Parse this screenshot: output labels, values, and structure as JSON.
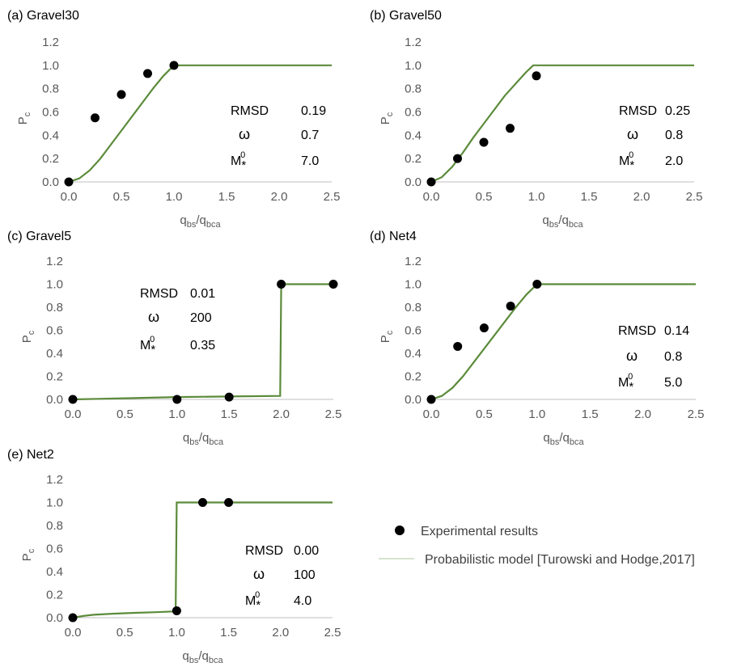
{
  "chart_data": [
    {
      "type": "line",
      "title": "(a) Gravel30",
      "xlabel": {
        "main": "q",
        "sub1": "bs",
        "mid": "/q",
        "sub2": "bca"
      },
      "ylabel": {
        "main": "P",
        "sub": "c"
      },
      "xlim": [
        0,
        2.5
      ],
      "ylim": [
        0,
        1.2
      ],
      "xticks": [
        "0.0",
        "0.5",
        "1.0",
        "1.5",
        "2.0",
        "2.5"
      ],
      "yticks": [
        "0.0",
        "0.2",
        "0.4",
        "0.6",
        "0.8",
        "1.0",
        "1.2"
      ],
      "grid": false,
      "series": [
        {
          "kind": "scatter",
          "x": [
            0.0,
            0.25,
            0.5,
            0.75,
            1.0
          ],
          "y": [
            0.0,
            0.55,
            0.75,
            0.93,
            1.0
          ]
        },
        {
          "kind": "line",
          "x": [
            0,
            0.1,
            0.2,
            0.3,
            0.4,
            0.5,
            0.6,
            0.7,
            0.8,
            0.9,
            1.0,
            2.5
          ],
          "y": [
            0,
            0.03,
            0.1,
            0.2,
            0.32,
            0.44,
            0.56,
            0.68,
            0.8,
            0.91,
            1.0,
            1.0
          ]
        }
      ],
      "stats": [
        {
          "label": "RMSD",
          "value": "0.19"
        },
        {
          "label": "ω",
          "value": "0.7"
        },
        {
          "label": "M*0",
          "value": "7.0"
        }
      ]
    },
    {
      "type": "line",
      "title": "(b) Gravel50",
      "xlabel": {
        "main": "q",
        "sub1": "bs",
        "mid": "/q",
        "sub2": "bca"
      },
      "ylabel": {
        "main": "P",
        "sub": "c"
      },
      "xlim": [
        0,
        2.5
      ],
      "ylim": [
        0,
        1.2
      ],
      "xticks": [
        "0.0",
        "0.5",
        "1.0",
        "1.5",
        "2.0",
        "2.5"
      ],
      "yticks": [
        "0.0",
        "0.2",
        "0.4",
        "0.6",
        "0.8",
        "1.0",
        "1.2"
      ],
      "grid": false,
      "series": [
        {
          "kind": "scatter",
          "x": [
            0.0,
            0.25,
            0.5,
            0.75,
            1.0
          ],
          "y": [
            0.0,
            0.2,
            0.34,
            0.46,
            0.91
          ]
        },
        {
          "kind": "line",
          "x": [
            0,
            0.1,
            0.2,
            0.3,
            0.4,
            0.5,
            0.6,
            0.7,
            0.8,
            0.9,
            0.97,
            1.0,
            2.5
          ],
          "y": [
            0,
            0.04,
            0.13,
            0.25,
            0.38,
            0.5,
            0.62,
            0.74,
            0.84,
            0.94,
            1.0,
            1.0,
            1.0
          ]
        }
      ],
      "stats": [
        {
          "label": "RMSD",
          "value": "0.25"
        },
        {
          "label": "ω",
          "value": "0.8"
        },
        {
          "label": "M*0",
          "value": "2.0"
        }
      ]
    },
    {
      "type": "line",
      "title": "(c) Gravel5",
      "xlabel": {
        "main": "q",
        "sub1": "bs",
        "mid": "/q",
        "sub2": "bca"
      },
      "ylabel": {
        "main": "P",
        "sub": "c"
      },
      "xlim": [
        0,
        2.5
      ],
      "ylim": [
        0,
        1.2
      ],
      "xticks": [
        "0.0",
        "0.5",
        "1.0",
        "1.5",
        "2.0",
        "2.5"
      ],
      "yticks": [
        "0.0",
        "0.2",
        "0.4",
        "0.6",
        "0.8",
        "1.0",
        "1.2"
      ],
      "grid": false,
      "series": [
        {
          "kind": "scatter",
          "x": [
            0.0,
            1.0,
            1.5,
            2.0,
            2.5
          ],
          "y": [
            0.0,
            0.0,
            0.02,
            1.0,
            1.0
          ]
        },
        {
          "kind": "line",
          "x": [
            0,
            0.5,
            1.0,
            1.5,
            1.99,
            2.0,
            2.5
          ],
          "y": [
            0.0,
            0.01,
            0.02,
            0.025,
            0.03,
            1.0,
            1.0
          ]
        }
      ],
      "stats": [
        {
          "label": "RMSD",
          "value": "0.01"
        },
        {
          "label": "ω",
          "value": "200"
        },
        {
          "label": "M*0",
          "value": "0.35"
        }
      ]
    },
    {
      "type": "line",
      "title": "(d) Net4",
      "xlabel": {
        "main": "q",
        "sub1": "bs",
        "mid": "/q",
        "sub2": "bca"
      },
      "ylabel": {
        "main": "P",
        "sub": "c"
      },
      "xlim": [
        0,
        2.5
      ],
      "ylim": [
        0,
        1.2
      ],
      "xticks": [
        "0.0",
        "0.5",
        "1.0",
        "1.5",
        "2.0",
        "2.5"
      ],
      "yticks": [
        "0.0",
        "0.2",
        "0.4",
        "0.6",
        "0.8",
        "1.0",
        "1.2"
      ],
      "grid": false,
      "series": [
        {
          "kind": "scatter",
          "x": [
            0.0,
            0.25,
            0.5,
            0.75,
            1.0
          ],
          "y": [
            0.0,
            0.46,
            0.62,
            0.81,
            1.0
          ]
        },
        {
          "kind": "line",
          "x": [
            0,
            0.1,
            0.2,
            0.3,
            0.4,
            0.5,
            0.6,
            0.7,
            0.8,
            0.9,
            1.0,
            2.5
          ],
          "y": [
            0,
            0.03,
            0.1,
            0.2,
            0.32,
            0.44,
            0.56,
            0.68,
            0.8,
            0.91,
            1.0,
            1.0
          ]
        }
      ],
      "stats": [
        {
          "label": "RMSD",
          "value": "0.14"
        },
        {
          "label": "ω",
          "value": "0.8"
        },
        {
          "label": "M*0",
          "value": "5.0"
        }
      ]
    },
    {
      "type": "line",
      "title": "(e) Net2",
      "xlabel": {
        "main": "q",
        "sub1": "bs",
        "mid": "/q",
        "sub2": "bca"
      },
      "ylabel": {
        "main": "P",
        "sub": "c"
      },
      "xlim": [
        0,
        2.5
      ],
      "ylim": [
        0,
        1.2
      ],
      "xticks": [
        "0.0",
        "0.5",
        "1.0",
        "1.5",
        "2.0",
        "2.5"
      ],
      "yticks": [
        "0.0",
        "0.2",
        "0.4",
        "0.6",
        "0.8",
        "1.0",
        "1.2"
      ],
      "grid": false,
      "series": [
        {
          "kind": "scatter",
          "x": [
            0.0,
            1.0,
            1.25,
            1.5
          ],
          "y": [
            0.0,
            0.06,
            1.0,
            1.0
          ]
        },
        {
          "kind": "line",
          "x": [
            0,
            0.1,
            0.2,
            0.4,
            0.6,
            0.8,
            0.99,
            1.0,
            2.5
          ],
          "y": [
            0,
            0.015,
            0.025,
            0.035,
            0.042,
            0.048,
            0.055,
            1.0,
            1.0
          ]
        }
      ],
      "stats": [
        {
          "label": "RMSD",
          "value": "0.00"
        },
        {
          "label": "ω",
          "value": "100"
        },
        {
          "label": "M*0",
          "value": "4.0"
        }
      ]
    }
  ],
  "legend": {
    "placement": "bottom-right",
    "items": [
      {
        "kind": "marker",
        "label": "Experimental results"
      },
      {
        "kind": "line",
        "label": "Probabilistic model [Turowski and Hodge,2017]"
      }
    ]
  },
  "colors": {
    "points": "#000000",
    "model_line": "#5b8b3a",
    "axis": "#bfbfbf",
    "text": "#000000",
    "tick_text": "#595959"
  }
}
